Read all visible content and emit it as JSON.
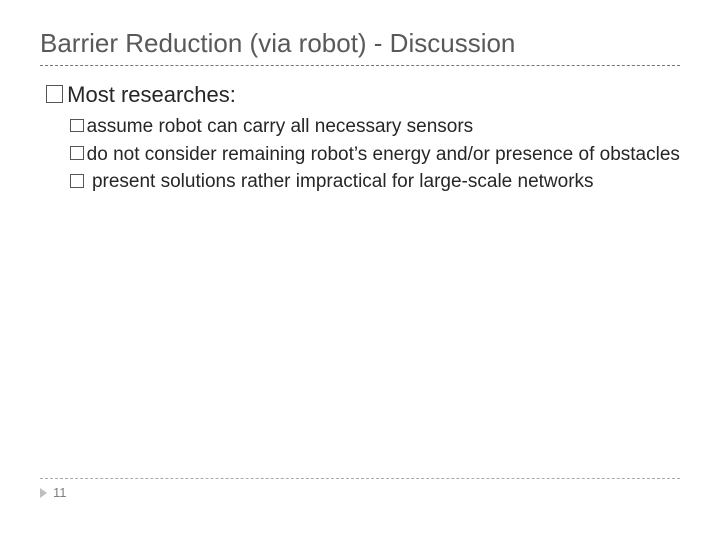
{
  "title": "Barrier Reduction (via robot) - Discussion",
  "level1": {
    "text": "Most researches:"
  },
  "level2": {
    "items": [
      {
        "text": "assume robot can carry all necessary sensors",
        "leading_space": false
      },
      {
        "text": "do not consider remaining robot’s energy and/or presence of obstacles",
        "leading_space": false
      },
      {
        "text": " present solutions rather impractical for large-scale networks",
        "leading_space": true
      }
    ]
  },
  "page_number": "11",
  "colors": {
    "title_color": "#595959",
    "body_color": "#262626",
    "rule_color": "#777777",
    "footer_rule_color": "#aaaaaa",
    "page_arrow_color": "#bfbfbf",
    "page_num_color": "#7f7f7f",
    "background": "#ffffff"
  },
  "typography": {
    "title_fontsize": 26,
    "level1_fontsize": 22,
    "level2_fontsize": 19,
    "page_num_fontsize": 13,
    "font_family": "Arial"
  }
}
